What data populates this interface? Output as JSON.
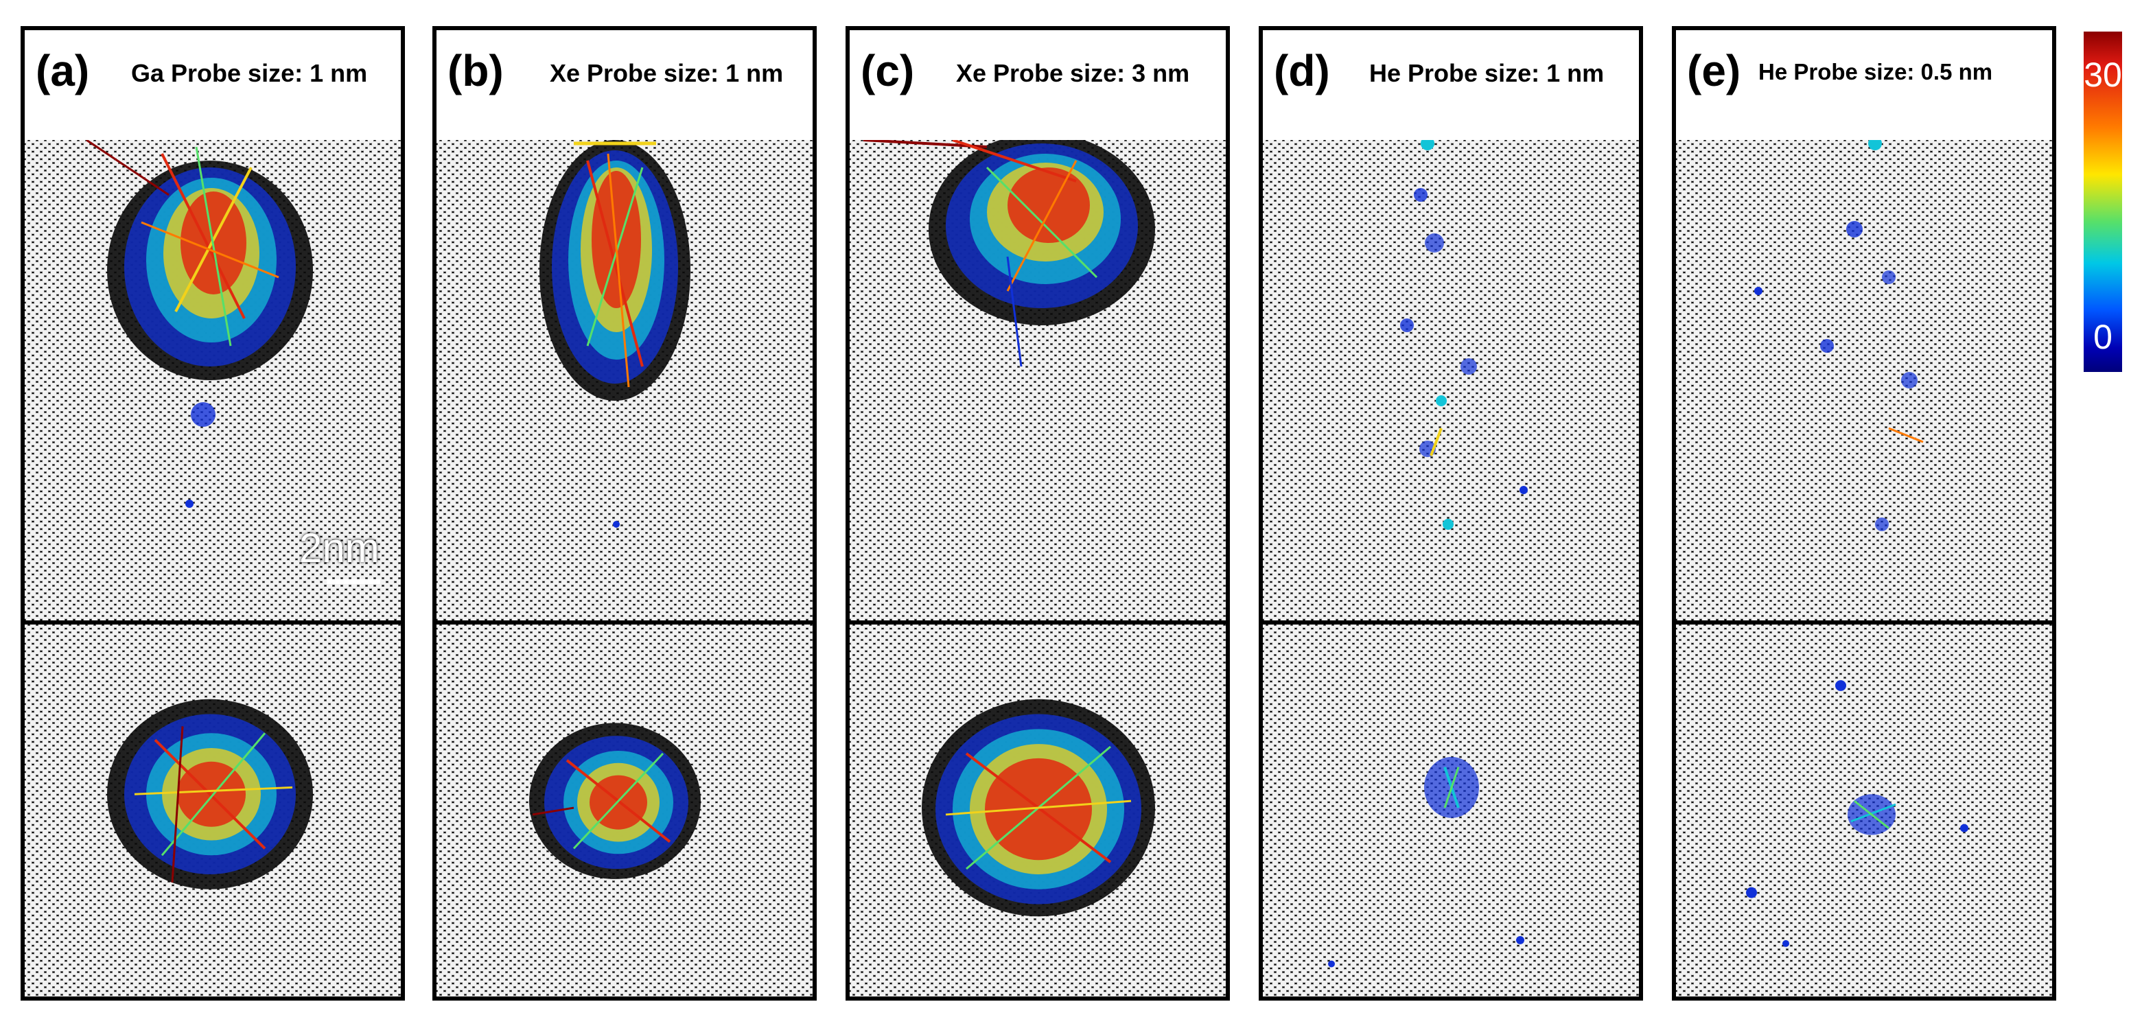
{
  "panels": [
    {
      "letter": "(a)",
      "title": "Ga Probe size: 1 nm"
    },
    {
      "letter": "(b)",
      "title": "Xe Probe size: 1 nm"
    },
    {
      "letter": "(c)",
      "title": "Xe Probe size: 3 nm"
    },
    {
      "letter": "(d)",
      "title": "He Probe size: 1 nm"
    },
    {
      "letter": "(e)",
      "title": "He Probe size: 0.5 nm"
    }
  ],
  "scale_bar": {
    "label": "2nm"
  },
  "colorbar": {
    "max_label": "30",
    "min_label": "0",
    "colors": [
      "#8b0000",
      "#e01a12",
      "#ff7a00",
      "#ffe600",
      "#56e06a",
      "#00c8e6",
      "#0055ff",
      "#0000b4",
      "#00007a"
    ]
  }
}
